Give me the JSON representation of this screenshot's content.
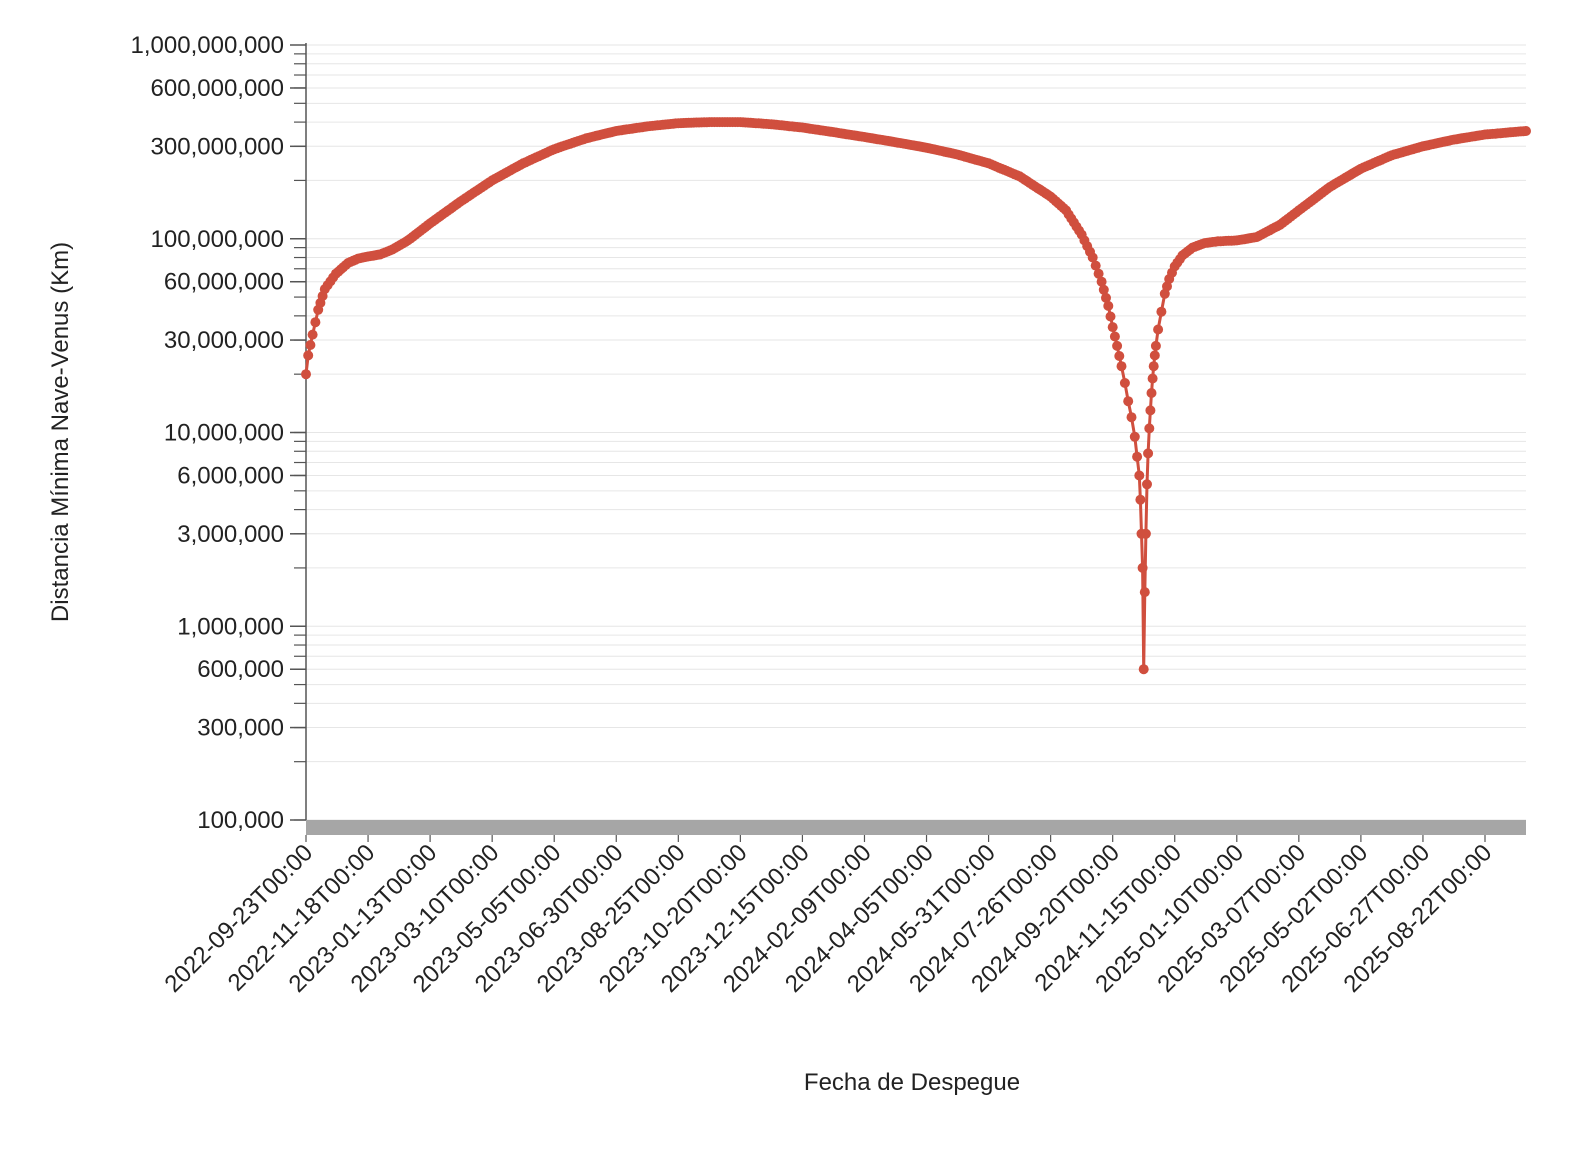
{
  "chart_data": {
    "type": "line",
    "title": "",
    "xlabel": "Fecha de Despegue",
    "ylabel": "Distancia Mínima Nave-Venus (Km)",
    "y_scale": "log",
    "ylim": [
      100000,
      1000000000
    ],
    "xlim": [
      "2022-09-23",
      "2025-09-28"
    ],
    "grid": true,
    "legend": "none",
    "series_color": "#d04f3e",
    "y_ticks": [
      {
        "value": 100000,
        "label": "100,000"
      },
      {
        "value": 300000,
        "label": "300,000"
      },
      {
        "value": 600000,
        "label": "600,000"
      },
      {
        "value": 1000000,
        "label": "1,000,000"
      },
      {
        "value": 3000000,
        "label": "3,000,000"
      },
      {
        "value": 6000000,
        "label": "6,000,000"
      },
      {
        "value": 10000000,
        "label": "10,000,000"
      },
      {
        "value": 30000000,
        "label": "30,000,000"
      },
      {
        "value": 60000000,
        "label": "60,000,000"
      },
      {
        "value": 100000000,
        "label": "100,000,000"
      },
      {
        "value": 300000000,
        "label": "300,000,000"
      },
      {
        "value": 600000000,
        "label": "600,000,000"
      },
      {
        "value": 1000000000,
        "label": "1,000,000,000"
      }
    ],
    "x_ticks": [
      "2022-09-23T00:00",
      "2022-11-18T00:00",
      "2023-01-13T00:00",
      "2023-03-10T00:00",
      "2023-05-05T00:00",
      "2023-06-30T00:00",
      "2023-08-25T00:00",
      "2023-10-20T00:00",
      "2023-12-15T00:00",
      "2024-02-09T00:00",
      "2024-04-05T00:00",
      "2024-05-31T00:00",
      "2024-07-26T00:00",
      "2024-09-20T00:00",
      "2024-11-15T00:00",
      "2025-01-10T00:00",
      "2025-03-07T00:00",
      "2025-05-02T00:00",
      "2025-06-27T00:00",
      "2025-08-22T00:00"
    ],
    "series": [
      {
        "x": [
          "2022-09-23",
          "2022-09-25",
          "2022-09-29",
          "2022-10-04",
          "2022-10-10",
          "2022-10-20",
          "2022-10-31",
          "2022-11-09",
          "2022-11-18",
          "2022-11-29",
          "2022-12-10",
          "2022-12-24",
          "2023-01-13",
          "2023-02-09",
          "2023-03-10",
          "2023-04-07",
          "2023-05-05",
          "2023-06-03",
          "2023-06-30",
          "2023-07-28",
          "2023-08-25",
          "2023-09-22",
          "2023-10-20",
          "2023-11-17",
          "2023-12-15",
          "2024-01-12",
          "2024-02-09",
          "2024-03-08",
          "2024-04-05",
          "2024-05-03",
          "2024-05-31",
          "2024-06-28",
          "2024-07-26",
          "2024-08-09",
          "2024-08-23",
          "2024-09-02",
          "2024-09-10",
          "2024-09-16",
          "2024-09-20",
          "2024-09-24",
          "2024-09-28",
          "2024-10-01",
          "2024-10-04",
          "2024-10-07",
          "2024-10-10",
          "2024-10-12",
          "2024-10-14",
          "2024-10-15",
          "2024-10-16",
          "2024-10-17",
          "2024-10-18",
          "2024-10-19",
          "2024-10-20",
          "2024-10-21",
          "2024-10-22",
          "2024-10-23",
          "2024-10-24",
          "2024-10-25",
          "2024-10-26",
          "2024-10-27",
          "2024-10-28",
          "2024-10-29",
          "2024-10-31",
          "2024-11-03",
          "2024-11-06",
          "2024-11-10",
          "2024-11-15",
          "2024-11-22",
          "2024-12-01",
          "2024-12-12",
          "2024-12-24",
          "2025-01-10",
          "2025-01-28",
          "2025-02-18",
          "2025-03-07",
          "2025-04-04",
          "2025-05-02",
          "2025-05-30",
          "2025-06-27",
          "2025-07-25",
          "2025-08-22",
          "2025-09-28"
        ],
        "y": [
          20000000,
          25000000,
          32000000,
          43000000,
          55000000,
          66000000,
          75000000,
          79000000,
          81000000,
          83000000,
          88000000,
          98000000,
          120000000,
          155000000,
          200000000,
          245000000,
          290000000,
          330000000,
          360000000,
          380000000,
          395000000,
          400000000,
          400000000,
          390000000,
          375000000,
          355000000,
          335000000,
          315000000,
          295000000,
          272000000,
          245000000,
          210000000,
          165000000,
          140000000,
          105000000,
          80000000,
          60000000,
          45000000,
          35000000,
          28000000,
          22000000,
          18000000,
          14500000,
          12000000,
          9500000,
          7500000,
          6000000,
          4500000,
          3000000,
          2000000,
          600000,
          1500000,
          3000000,
          5400000,
          7800000,
          10500000,
          13000000,
          16000000,
          19000000,
          22000000,
          25000000,
          28000000,
          34000000,
          42000000,
          52000000,
          62000000,
          72000000,
          82000000,
          90000000,
          95000000,
          97000000,
          98000000,
          102000000,
          118000000,
          140000000,
          185000000,
          230000000,
          270000000,
          300000000,
          325000000,
          345000000,
          360000000
        ]
      }
    ]
  }
}
